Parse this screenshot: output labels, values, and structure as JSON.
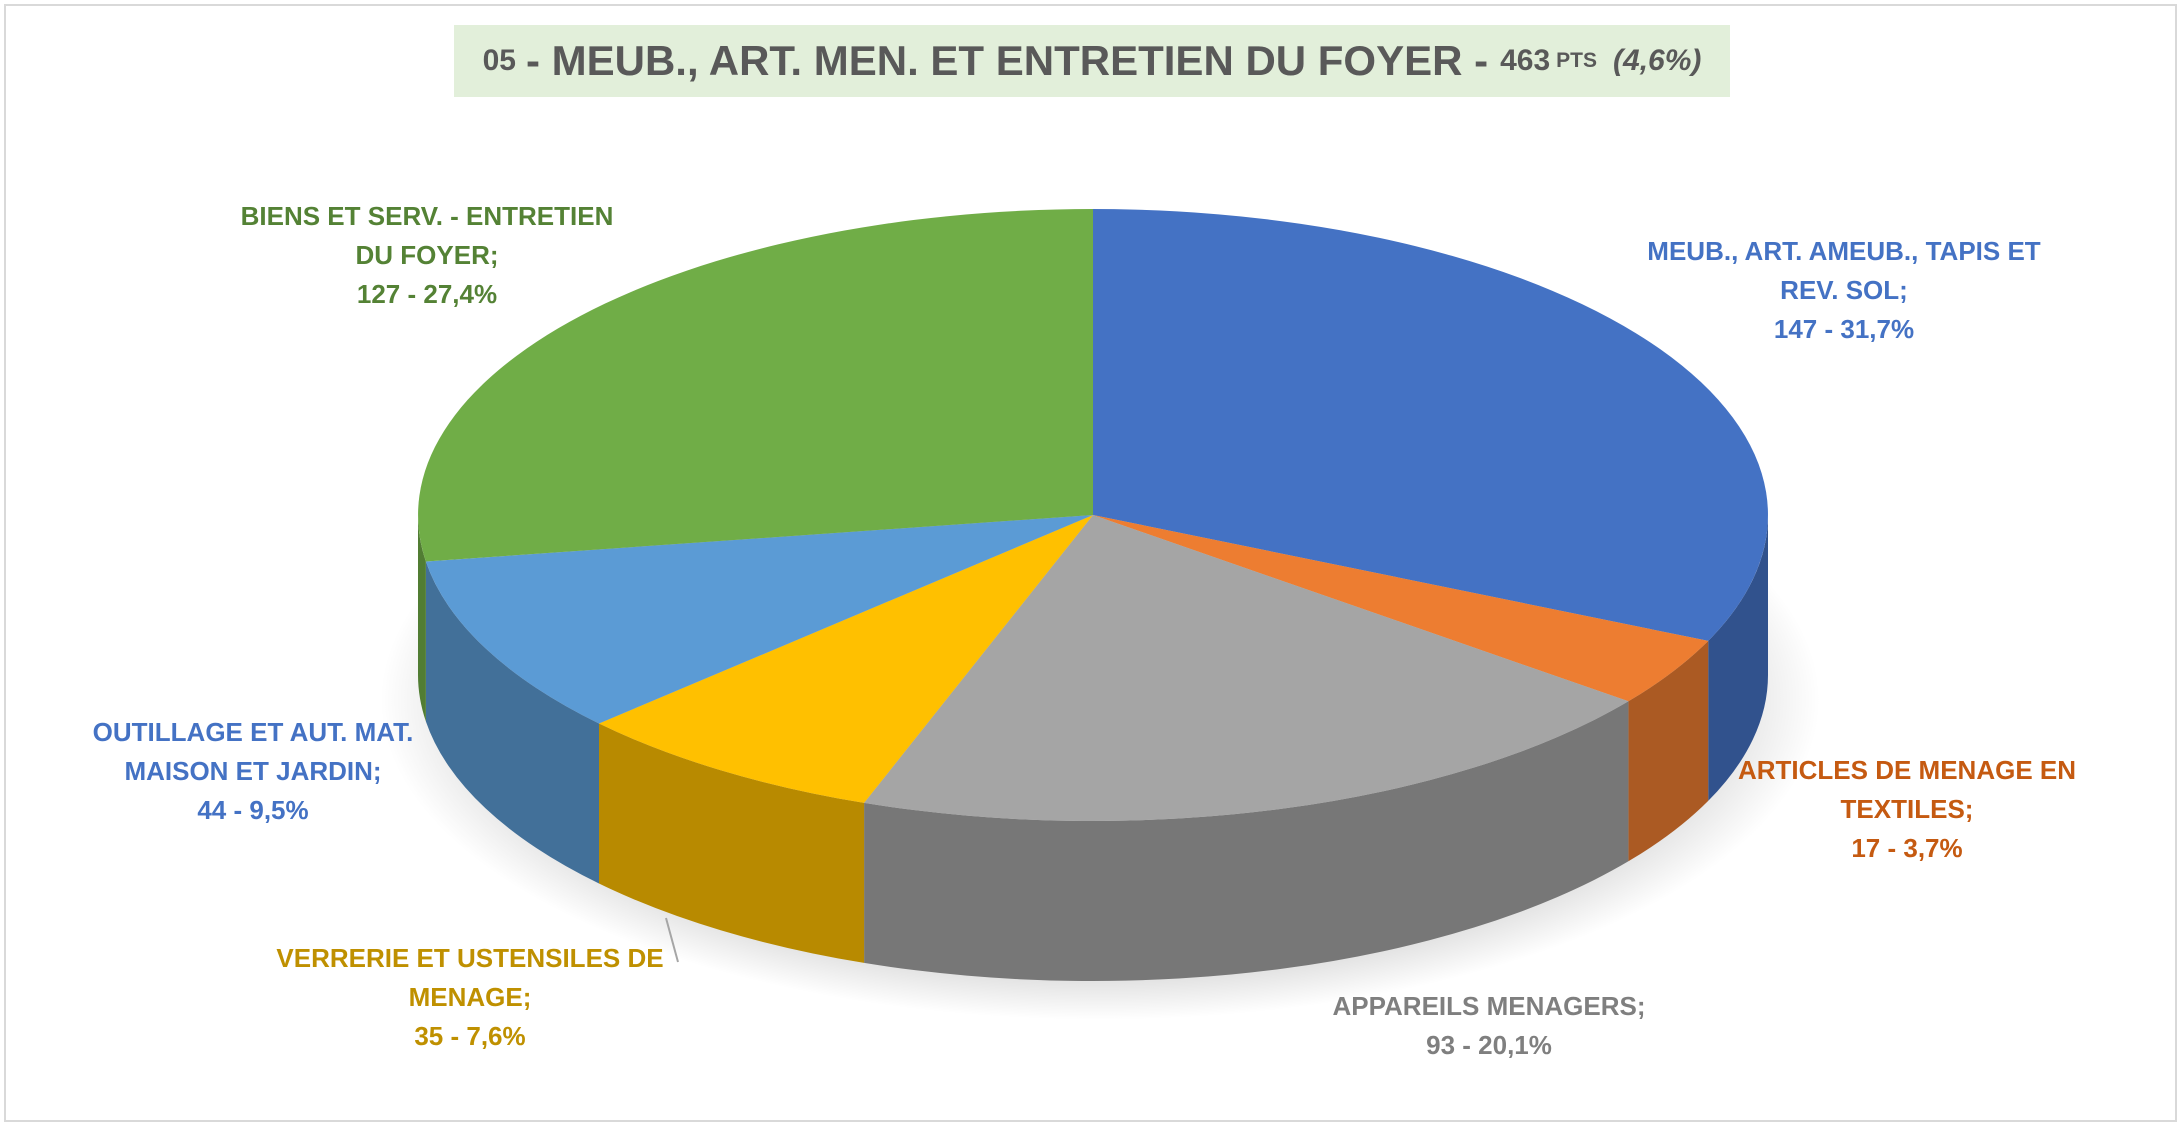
{
  "chart_data": {
    "type": "pie3d",
    "title": {
      "code": "05",
      "name": "- MEUB., ART. MEN. ET ENTRETIEN DU FOYER -",
      "total": 463,
      "unit": "PTS",
      "share": "(4,6%)"
    },
    "categories": [
      "MEUB., ART. AMEUB., TAPIS ET REV. SOL;",
      "ARTICLES DE MENAGE EN TEXTILES;",
      "APPAREILS MENAGERS;",
      "VERRERIE ET USTENSILES DE MENAGE;",
      "OUTILLAGE ET AUT. MAT. MAISON ET JARDIN;",
      "BIENS ET SERV. - ENTRETIEN DU FOYER;"
    ],
    "values": [
      147,
      17,
      93,
      35,
      44,
      127
    ],
    "value_labels": [
      "147 - 31,7%",
      "17 - 3,7%",
      "93 - 20,1%",
      "35 - 7,6%",
      "44 - 9,5%",
      "127 - 27,4%"
    ],
    "colors": [
      "#4472c4",
      "#ed7d31",
      "#a5a5a5",
      "#ffc000",
      "#5b9bd5",
      "#70ad47"
    ],
    "label_colors": [
      "#4472c4",
      "#c55a11",
      "#7f7f7f",
      "#bf9000",
      "#4472c4",
      "#548235"
    ]
  }
}
